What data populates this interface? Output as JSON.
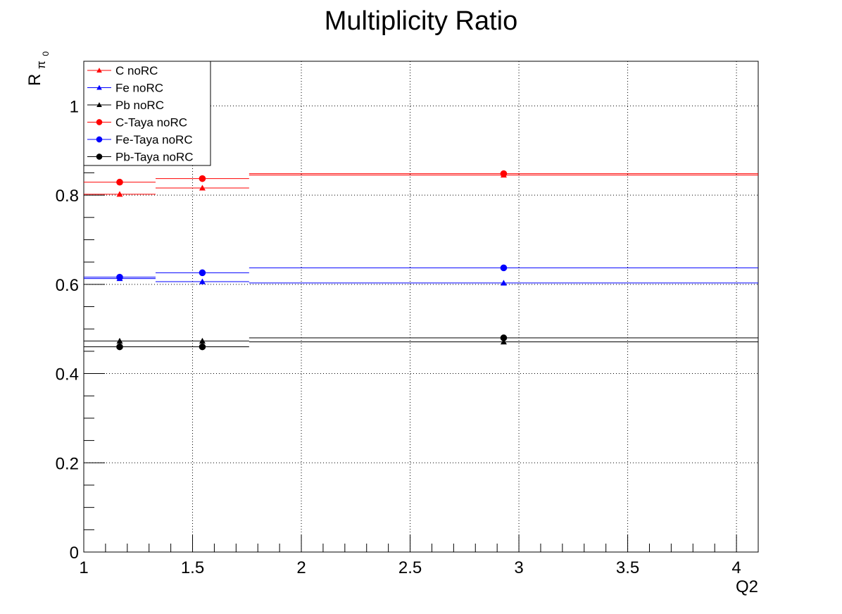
{
  "chart_data": {
    "type": "scatter",
    "title": "Multiplicity Ratio",
    "xlabel": "Q2",
    "ylabel": {
      "main": "R",
      "sub": "π",
      "subsub": "0"
    },
    "xlim": [
      1.0,
      4.1
    ],
    "ylim": [
      0,
      1.1
    ],
    "x_ticks": [
      "1",
      "1.5",
      "2",
      "2.5",
      "3",
      "3.5",
      "4"
    ],
    "y_ticks": [
      "0",
      "0.2",
      "0.4",
      "0.6",
      "0.8",
      "1"
    ],
    "grid": true,
    "legend_position": "top-left",
    "bins": [
      [
        1.0,
        1.33
      ],
      [
        1.33,
        1.76
      ],
      [
        1.76,
        4.1
      ]
    ],
    "x": [
      1.165,
      1.545,
      2.93
    ],
    "series": [
      {
        "name": "C noRC",
        "marker": "triangle",
        "color": "#ff0000",
        "values": [
          0.802,
          0.816,
          0.845
        ]
      },
      {
        "name": "Fe noRC",
        "marker": "triangle",
        "color": "#0000ff",
        "values": [
          0.613,
          0.606,
          0.603
        ]
      },
      {
        "name": "Pb noRC",
        "marker": "triangle",
        "color": "#000000",
        "values": [
          0.473,
          0.473,
          0.471
        ]
      },
      {
        "name": "C-Taya noRC",
        "marker": "circle",
        "color": "#ff0000",
        "values": [
          0.829,
          0.837,
          0.848
        ]
      },
      {
        "name": "Fe-Taya noRC",
        "marker": "circle",
        "color": "#0000ff",
        "values": [
          0.616,
          0.626,
          0.637
        ]
      },
      {
        "name": "Pb-Taya noRC",
        "marker": "circle",
        "color": "#000000",
        "values": [
          0.46,
          0.46,
          0.48
        ]
      }
    ]
  }
}
